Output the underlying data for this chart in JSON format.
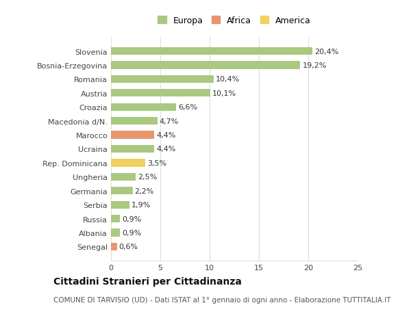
{
  "categories": [
    "Slovenia",
    "Bosnia-Erzegovina",
    "Romania",
    "Austria",
    "Croazia",
    "Macedonia d/N.",
    "Marocco",
    "Ucraina",
    "Rep. Dominicana",
    "Ungheria",
    "Germania",
    "Serbia",
    "Russia",
    "Albania",
    "Senegal"
  ],
  "values": [
    20.4,
    19.2,
    10.4,
    10.1,
    6.6,
    4.7,
    4.4,
    4.4,
    3.5,
    2.5,
    2.2,
    1.9,
    0.9,
    0.9,
    0.6
  ],
  "labels": [
    "20,4%",
    "19,2%",
    "10,4%",
    "10,1%",
    "6,6%",
    "4,7%",
    "4,4%",
    "4,4%",
    "3,5%",
    "2,5%",
    "2,2%",
    "1,9%",
    "0,9%",
    "0,9%",
    "0,6%"
  ],
  "continents": [
    "Europa",
    "Europa",
    "Europa",
    "Europa",
    "Europa",
    "Europa",
    "Africa",
    "Europa",
    "America",
    "Europa",
    "Europa",
    "Europa",
    "Europa",
    "Europa",
    "Africa"
  ],
  "colors": {
    "Europa": "#a8c97f",
    "Africa": "#e8956d",
    "America": "#f0d060"
  },
  "legend_entries": [
    "Europa",
    "Africa",
    "America"
  ],
  "xlim": [
    0,
    25
  ],
  "xticks": [
    0,
    5,
    10,
    15,
    20,
    25
  ],
  "title": "Cittadini Stranieri per Cittadinanza",
  "subtitle": "COMUNE DI TARVISIO (UD) - Dati ISTAT al 1° gennaio di ogni anno - Elaborazione TUTTITALIA.IT",
  "background_color": "#ffffff",
  "bar_height": 0.55,
  "grid_color": "#dddddd",
  "label_fontsize": 8,
  "tick_fontsize": 8,
  "title_fontsize": 10,
  "subtitle_fontsize": 7.5
}
